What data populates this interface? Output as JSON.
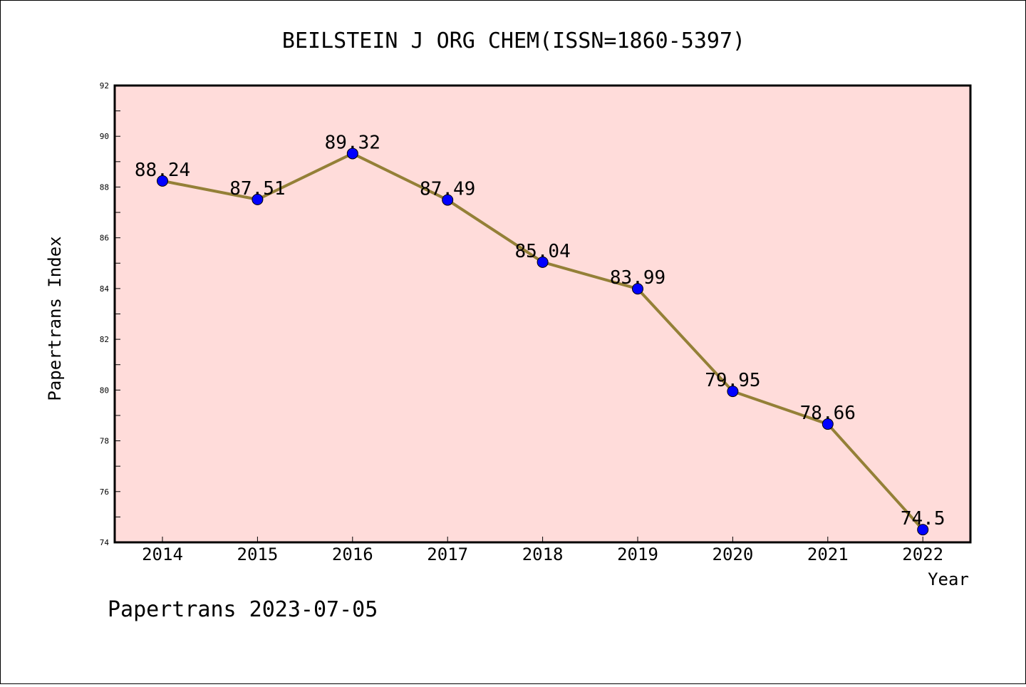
{
  "chart_data": {
    "type": "line",
    "title": "BEILSTEIN J ORG CHEM(ISSN=1860-5397)",
    "xlabel": "Year",
    "ylabel": "Papertrans Index",
    "categories": [
      "2014",
      "2015",
      "2016",
      "2017",
      "2018",
      "2019",
      "2020",
      "2021",
      "2022"
    ],
    "values": [
      88.24,
      87.51,
      89.32,
      87.49,
      85.04,
      83.99,
      79.95,
      78.66,
      74.5
    ],
    "value_labels": [
      "88.24",
      "87.51",
      "89.32",
      "87.49",
      "85.04",
      "83.99",
      "79.95",
      "78.66",
      "74.5"
    ],
    "ylim": [
      74,
      92
    ],
    "yticks": [
      "74",
      "76",
      "78",
      "80",
      "82",
      "84",
      "86",
      "88",
      "90",
      "92"
    ],
    "grid": false,
    "legend": "none",
    "colors": {
      "plot_background": "#FFDCDA",
      "line": "#948037",
      "marker": "#0000FF"
    }
  },
  "footer": {
    "text": "Papertrans 2023-07-05"
  }
}
